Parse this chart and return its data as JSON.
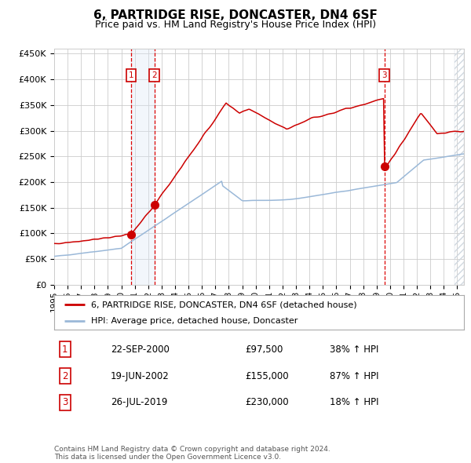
{
  "title": "6, PARTRIDGE RISE, DONCASTER, DN4 6SF",
  "subtitle": "Price paid vs. HM Land Registry's House Price Index (HPI)",
  "ylabel_ticks": [
    "£0",
    "£50K",
    "£100K",
    "£150K",
    "£200K",
    "£250K",
    "£300K",
    "£350K",
    "£400K",
    "£450K"
  ],
  "ytick_values": [
    0,
    50000,
    100000,
    150000,
    200000,
    250000,
    300000,
    350000,
    400000,
    450000
  ],
  "ylim": [
    0,
    460000
  ],
  "xlim_start": 1995.0,
  "xlim_end": 2025.5,
  "hpi_color": "#9ab8d8",
  "price_color": "#cc0000",
  "sale_marker_color": "#cc0000",
  "purchase_highlight_color": "#dce8f5",
  "vline_color": "#dd0000",
  "annotation_box_color": "#cc0000",
  "grid_color": "#cccccc",
  "background_color": "#ffffff",
  "legend_entries": [
    "6, PARTRIDGE RISE, DONCASTER, DN4 6SF (detached house)",
    "HPI: Average price, detached house, Doncaster"
  ],
  "transactions": [
    {
      "id": 1,
      "date_str": "22-SEP-2000",
      "date_num": 2000.72,
      "price": 97500,
      "pct": "38%",
      "dir": "↑"
    },
    {
      "id": 2,
      "date_str": "19-JUN-2002",
      "date_num": 2002.46,
      "price": 155000,
      "pct": "87%",
      "dir": "↑"
    },
    {
      "id": 3,
      "date_str": "26-JUL-2019",
      "date_num": 2019.57,
      "price": 230000,
      "pct": "18%",
      "dir": "↑"
    }
  ],
  "table_rows": [
    {
      "id": 1,
      "date": "22-SEP-2000",
      "price": "£97,500",
      "change": "38% ↑ HPI"
    },
    {
      "id": 2,
      "date": "19-JUN-2002",
      "price": "£155,000",
      "change": "87% ↑ HPI"
    },
    {
      "id": 3,
      "date": "26-JUL-2019",
      "price": "£230,000",
      "change": "18% ↑ HPI"
    }
  ],
  "footer": "Contains HM Land Registry data © Crown copyright and database right 2024.\nThis data is licensed under the Open Government Licence v3.0.",
  "title_fontsize": 11,
  "subtitle_fontsize": 9,
  "tick_fontsize": 8,
  "legend_fontsize": 8,
  "table_fontsize": 8.5,
  "footer_fontsize": 6.5
}
